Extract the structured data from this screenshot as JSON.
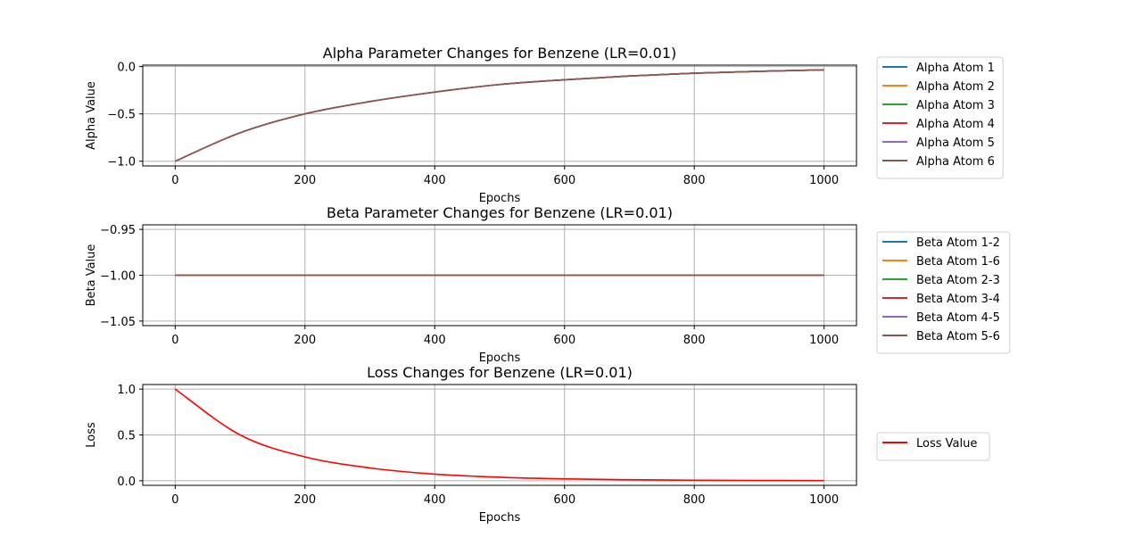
{
  "chart_data": [
    {
      "type": "line",
      "title": "Alpha Parameter Changes for Benzene (LR=0.01)",
      "xlabel": "Epochs",
      "ylabel": "Alpha Value",
      "xlim": [
        -50,
        1050
      ],
      "ylim": [
        -1.05,
        0.015
      ],
      "xticks": [
        0,
        200,
        400,
        600,
        800,
        1000
      ],
      "xtick_labels": [
        "0",
        "200",
        "400",
        "600",
        "800",
        "1000"
      ],
      "yticks": [
        0.0,
        -0.5,
        -1.0
      ],
      "ytick_labels": [
        "0.0",
        "−0.5",
        "−1.0"
      ],
      "grid": true,
      "legend_position": "outside-right",
      "x": [
        0,
        100,
        200,
        300,
        400,
        500,
        600,
        700,
        800,
        900,
        1000
      ],
      "series": [
        {
          "name": "Alpha Atom 1",
          "color": "#1f77b4",
          "values": [
            -1.0,
            -0.7,
            -0.5,
            -0.37,
            -0.27,
            -0.19,
            -0.14,
            -0.1,
            -0.07,
            -0.05,
            -0.035
          ]
        },
        {
          "name": "Alpha Atom 2",
          "color": "#ff7f0e",
          "values": [
            -1.0,
            -0.7,
            -0.5,
            -0.37,
            -0.27,
            -0.19,
            -0.14,
            -0.1,
            -0.07,
            -0.05,
            -0.035
          ]
        },
        {
          "name": "Alpha Atom 3",
          "color": "#2ca02c",
          "values": [
            -1.0,
            -0.7,
            -0.5,
            -0.37,
            -0.27,
            -0.19,
            -0.14,
            -0.1,
            -0.07,
            -0.05,
            -0.035
          ]
        },
        {
          "name": "Alpha Atom 4",
          "color": "#d62728",
          "values": [
            -1.0,
            -0.7,
            -0.5,
            -0.37,
            -0.27,
            -0.19,
            -0.14,
            -0.1,
            -0.07,
            -0.05,
            -0.035
          ]
        },
        {
          "name": "Alpha Atom 5",
          "color": "#9467bd",
          "values": [
            -1.0,
            -0.7,
            -0.5,
            -0.37,
            -0.27,
            -0.19,
            -0.14,
            -0.1,
            -0.07,
            -0.05,
            -0.035
          ]
        },
        {
          "name": "Alpha Atom 6",
          "color": "#8c564b",
          "values": [
            -1.0,
            -0.7,
            -0.5,
            -0.37,
            -0.27,
            -0.19,
            -0.14,
            -0.1,
            -0.07,
            -0.05,
            -0.035
          ]
        }
      ]
    },
    {
      "type": "line",
      "title": "Beta Parameter Changes for Benzene (LR=0.01)",
      "xlabel": "Epochs",
      "ylabel": "Beta Value",
      "xlim": [
        -50,
        1050
      ],
      "ylim": [
        -1.055,
        -0.945
      ],
      "xticks": [
        0,
        200,
        400,
        600,
        800,
        1000
      ],
      "xtick_labels": [
        "0",
        "200",
        "400",
        "600",
        "800",
        "1000"
      ],
      "yticks": [
        -0.95,
        -1.0,
        -1.05
      ],
      "ytick_labels": [
        "−0.95",
        "−1.00",
        "−1.05"
      ],
      "grid": true,
      "legend_position": "outside-right",
      "x": [
        0,
        100,
        200,
        300,
        400,
        500,
        600,
        700,
        800,
        900,
        1000
      ],
      "series": [
        {
          "name": "Beta Atom 1-2",
          "color": "#1f77b4",
          "values": [
            -1.0,
            -1.0,
            -1.0,
            -1.0,
            -1.0,
            -1.0,
            -1.0,
            -1.0,
            -1.0,
            -1.0,
            -1.0
          ]
        },
        {
          "name": "Beta Atom 1-6",
          "color": "#ff7f0e",
          "values": [
            -1.0,
            -1.0,
            -1.0,
            -1.0,
            -1.0,
            -1.0,
            -1.0,
            -1.0,
            -1.0,
            -1.0,
            -1.0
          ]
        },
        {
          "name": "Beta Atom 2-3",
          "color": "#2ca02c",
          "values": [
            -1.0,
            -1.0,
            -1.0,
            -1.0,
            -1.0,
            -1.0,
            -1.0,
            -1.0,
            -1.0,
            -1.0,
            -1.0
          ]
        },
        {
          "name": "Beta Atom 3-4",
          "color": "#d62728",
          "values": [
            -1.0,
            -1.0,
            -1.0,
            -1.0,
            -1.0,
            -1.0,
            -1.0,
            -1.0,
            -1.0,
            -1.0,
            -1.0
          ]
        },
        {
          "name": "Beta Atom 4-5",
          "color": "#9467bd",
          "values": [
            -1.0,
            -1.0,
            -1.0,
            -1.0,
            -1.0,
            -1.0,
            -1.0,
            -1.0,
            -1.0,
            -1.0,
            -1.0
          ]
        },
        {
          "name": "Beta Atom 5-6",
          "color": "#8c564b",
          "values": [
            -1.0,
            -1.0,
            -1.0,
            -1.0,
            -1.0,
            -1.0,
            -1.0,
            -1.0,
            -1.0,
            -1.0,
            -1.0
          ]
        }
      ]
    },
    {
      "type": "line",
      "title": "Loss Changes for Benzene (LR=0.01)",
      "xlabel": "Epochs",
      "ylabel": "Loss",
      "xlim": [
        -50,
        1050
      ],
      "ylim": [
        -0.05,
        1.05
      ],
      "xticks": [
        0,
        200,
        400,
        600,
        800,
        1000
      ],
      "xtick_labels": [
        "0",
        "200",
        "400",
        "600",
        "800",
        "1000"
      ],
      "yticks": [
        1.0,
        0.5,
        0.0
      ],
      "ytick_labels": [
        "1.0",
        "0.5",
        "0.0"
      ],
      "grid": true,
      "legend_position": "outside-right",
      "x": [
        0,
        100,
        200,
        300,
        400,
        500,
        600,
        700,
        800,
        900,
        1000
      ],
      "series": [
        {
          "name": "Loss Value",
          "color": "#ff0000",
          "values": [
            1.0,
            0.5,
            0.26,
            0.14,
            0.072,
            0.038,
            0.02,
            0.011,
            0.006,
            0.003,
            0.002
          ]
        }
      ]
    }
  ]
}
